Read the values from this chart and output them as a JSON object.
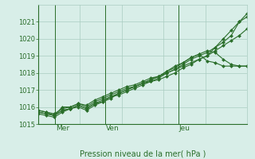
{
  "title": "",
  "xlabel": "Pression niveau de la mer( hPa )",
  "background_color": "#d8eee8",
  "grid_color": "#aaccc0",
  "line_color": "#2a6e2a",
  "ylim": [
    1015,
    1022
  ],
  "yticks": [
    1015,
    1016,
    1017,
    1018,
    1019,
    1020,
    1021
  ],
  "day_labels": [
    "Mer",
    "Ven",
    "Jeu"
  ],
  "day_positions": [
    0.08,
    0.32,
    0.67
  ],
  "series": [
    [
      1015.7,
      1015.6,
      1015.5,
      1015.8,
      1015.9,
      1016.1,
      1015.9,
      1016.2,
      1016.3,
      1016.6,
      1016.7,
      1016.9,
      1017.1,
      1017.3,
      1017.5,
      1017.7,
      1018.0,
      1018.2,
      1018.5,
      1018.8,
      1019.0,
      1019.2,
      1019.5,
      1019.8,
      1020.2,
      1021.0,
      1021.3
    ],
    [
      1015.8,
      1015.7,
      1015.6,
      1015.9,
      1016.0,
      1016.2,
      1016.0,
      1016.3,
      1016.5,
      1016.7,
      1016.9,
      1017.1,
      1017.2,
      1017.4,
      1017.6,
      1017.8,
      1018.1,
      1018.3,
      1018.6,
      1018.9,
      1019.1,
      1019.3,
      1019.2,
      1018.8,
      1018.5,
      1018.4,
      1018.4
    ],
    [
      1015.8,
      1015.7,
      1015.5,
      1016.0,
      1016.0,
      1016.2,
      1016.1,
      1016.4,
      1016.6,
      1016.8,
      1017.0,
      1017.2,
      1017.3,
      1017.5,
      1017.7,
      1017.8,
      1018.1,
      1018.4,
      1018.6,
      1018.9,
      1019.1,
      1018.7,
      1018.6,
      1018.4,
      1018.4,
      1018.4,
      1018.4
    ],
    [
      1015.6,
      1015.5,
      1015.4,
      1015.7,
      1015.9,
      1016.0,
      1015.8,
      1016.1,
      1016.3,
      1016.5,
      1016.8,
      1017.0,
      1017.2,
      1017.4,
      1017.5,
      1017.6,
      1017.8,
      1018.0,
      1018.3,
      1018.5,
      1018.8,
      1019.0,
      1019.5,
      1020.0,
      1020.5,
      1021.0,
      1021.5
    ],
    [
      1015.7,
      1015.6,
      1015.5,
      1015.8,
      1015.9,
      1016.1,
      1015.9,
      1016.2,
      1016.4,
      1016.6,
      1016.8,
      1017.0,
      1017.2,
      1017.4,
      1017.6,
      1017.8,
      1018.0,
      1018.2,
      1018.4,
      1018.6,
      1018.8,
      1019.0,
      1019.3,
      1019.6,
      1019.9,
      1020.2,
      1020.6
    ]
  ]
}
